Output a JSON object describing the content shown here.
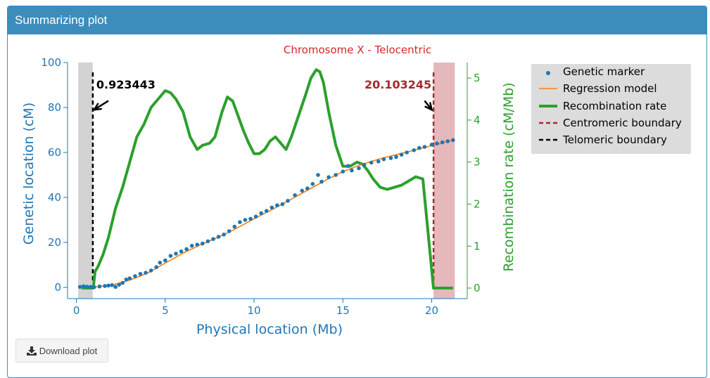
{
  "panel": {
    "title": "Summarizing plot"
  },
  "download_button": {
    "label": "Download plot"
  },
  "colors": {
    "accent": "#3c8dbc",
    "left_axis": "#1f77b4",
    "right_axis": "#2ca02c",
    "title": "#d62728",
    "regression": "#ff7f0e",
    "centromeric": "#a52a2a",
    "telomeric": "#000000"
  },
  "chart_data": {
    "type": "line",
    "title": "Chromosome X - Telocentric",
    "xlabel": "Physical location (Mb)",
    "ylabel_left": "Genetic location (cM)",
    "ylabel_right": "Recombination rate (cM/Mb)",
    "xlim": [
      -0.5,
      22
    ],
    "ylim_left": [
      -5,
      100
    ],
    "ylim_right": [
      -0.25,
      5.37
    ],
    "xticks": [
      0,
      5,
      10,
      15,
      20
    ],
    "yticks_left": [
      0,
      20,
      40,
      60,
      80,
      100
    ],
    "yticks_right": [
      0,
      1,
      2,
      3,
      4,
      5
    ],
    "legend": {
      "placement": "outside-right",
      "entries": [
        "Genetic marker",
        "Regression model",
        "Recombination rate",
        "Centromeric boundary",
        "Telomeric boundary"
      ]
    },
    "shaded_regions": [
      {
        "x0": 0.1,
        "x1": 0.92,
        "color": "#d3d3d3"
      },
      {
        "x0": 20.1,
        "x1": 21.3,
        "color": "#e5b8bc"
      }
    ],
    "boundaries": {
      "telomeric": {
        "x": 0.923443,
        "label": "0.923443",
        "arrow_from": [
          1.8,
          83
        ],
        "arrow_to": [
          1.0,
          79
        ]
      },
      "centromeric": {
        "x": 20.103245,
        "label": "20.103245",
        "arrow_from": [
          19.6,
          83
        ],
        "arrow_to": [
          20.0,
          79
        ]
      }
    },
    "series": [
      {
        "name": "Genetic marker",
        "kind": "scatter",
        "axis": "left",
        "x": [
          0.2,
          0.4,
          0.6,
          0.8,
          1.0,
          1.3,
          1.6,
          1.8,
          2.0,
          2.2,
          2.4,
          2.6,
          2.8,
          3.0,
          3.3,
          3.6,
          3.9,
          4.2,
          4.5,
          4.7,
          5.0,
          5.3,
          5.6,
          5.9,
          6.2,
          6.5,
          6.8,
          7.1,
          7.4,
          7.7,
          8.0,
          8.3,
          8.6,
          8.9,
          9.2,
          9.5,
          9.8,
          10.1,
          10.4,
          10.7,
          11.0,
          11.3,
          11.6,
          11.9,
          12.3,
          12.7,
          13.0,
          13.3,
          13.6,
          13.8,
          14.2,
          14.6,
          15.0,
          15.3,
          15.5,
          15.9,
          16.2,
          16.6,
          17.0,
          17.3,
          17.7,
          18.0,
          18.3,
          18.6,
          19.0,
          19.3,
          19.6,
          20.0,
          20.3,
          20.6,
          20.9,
          21.2
        ],
        "y": [
          0.2,
          0.5,
          0.3,
          0.2,
          0.1,
          0.4,
          0.6,
          0.8,
          1.0,
          0.2,
          1.2,
          2.0,
          3.5,
          4.0,
          5.0,
          6.0,
          6.5,
          7.5,
          9.0,
          11.0,
          12.0,
          14.0,
          15.0,
          16.0,
          17.0,
          18.5,
          19.0,
          19.5,
          20.5,
          21.5,
          22.5,
          23.5,
          25.0,
          27.0,
          29.0,
          30.0,
          30.5,
          31.5,
          33.0,
          34.0,
          35.5,
          36.5,
          37.0,
          38.5,
          41.0,
          43.0,
          44.0,
          46.0,
          50.0,
          47.0,
          49.0,
          50.0,
          51.5,
          54.0,
          52.0,
          53.0,
          54.5,
          55.5,
          56.0,
          57.0,
          57.5,
          58.0,
          59.0,
          60.0,
          61.0,
          62.0,
          62.5,
          63.5,
          64.0,
          64.5,
          65.0,
          65.5
        ]
      },
      {
        "name": "Regression model",
        "kind": "line",
        "axis": "left",
        "x": [
          0.2,
          1.0,
          2.0,
          3.0,
          4.0,
          5.0,
          6.0,
          7.0,
          8.0,
          9.0,
          10.0,
          11.0,
          12.0,
          13.0,
          14.0,
          15.0,
          16.0,
          17.0,
          18.0,
          19.0,
          20.0,
          21.2
        ],
        "y": [
          0.0,
          0.2,
          1.0,
          3.2,
          6.3,
          10.8,
          15.2,
          19.0,
          22.3,
          26.2,
          30.5,
          34.5,
          38.8,
          43.2,
          47.5,
          51.5,
          54.5,
          57.0,
          59.0,
          61.0,
          63.0,
          65.5
        ]
      },
      {
        "name": "Recombination rate",
        "kind": "line",
        "axis": "right",
        "x": [
          0.3,
          0.95,
          1.05,
          1.2,
          1.5,
          1.8,
          2.2,
          2.6,
          3.0,
          3.4,
          3.8,
          4.2,
          4.6,
          5.0,
          5.3,
          5.6,
          6.0,
          6.4,
          6.8,
          7.1,
          7.5,
          7.8,
          8.2,
          8.5,
          8.8,
          9.1,
          9.4,
          9.7,
          10.0,
          10.3,
          10.6,
          10.9,
          11.2,
          11.5,
          11.8,
          12.1,
          12.5,
          12.9,
          13.2,
          13.5,
          13.7,
          13.9,
          14.2,
          14.6,
          15.0,
          15.4,
          15.8,
          16.1,
          16.4,
          16.7,
          17.1,
          17.5,
          17.9,
          18.3,
          18.7,
          19.1,
          19.5,
          20.1,
          20.15,
          21.2
        ],
        "y": [
          0,
          0,
          0.4,
          0.5,
          0.8,
          1.2,
          1.9,
          2.4,
          3.0,
          3.6,
          3.9,
          4.3,
          4.5,
          4.7,
          4.65,
          4.5,
          4.2,
          3.6,
          3.3,
          3.4,
          3.45,
          3.6,
          4.2,
          4.55,
          4.45,
          4.1,
          3.75,
          3.45,
          3.2,
          3.2,
          3.3,
          3.5,
          3.6,
          3.45,
          3.3,
          3.6,
          4.1,
          4.6,
          5.0,
          5.2,
          5.15,
          4.9,
          4.2,
          3.4,
          2.9,
          2.9,
          3.0,
          2.95,
          2.8,
          2.6,
          2.4,
          2.35,
          2.4,
          2.45,
          2.55,
          2.65,
          2.6,
          0,
          0,
          0
        ]
      }
    ]
  }
}
